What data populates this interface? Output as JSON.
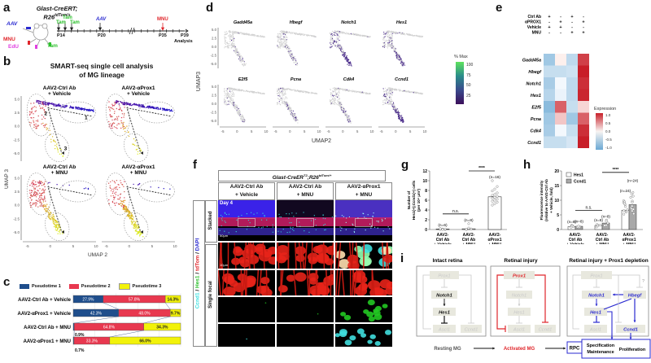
{
  "panels": {
    "a": {
      "label": "a",
      "mouse_title_1": "Glast-CreERT;",
      "mouse_title_2": "R26",
      "mouse_title_sup": "tdTom/+",
      "mouse_injections": [
        {
          "label": "AAV",
          "color": "#2a2ad0"
        },
        {
          "label": "MNU",
          "color": "#e0262b"
        },
        {
          "label": "EdU",
          "color": "#e040e0"
        },
        {
          "label": "Tam",
          "color": "#2ec02e"
        }
      ],
      "timeline": {
        "tam_labels": [
          "Tam",
          "Tam",
          "Tam"
        ],
        "aav_label": "AAV",
        "mnu_label": "MNU",
        "ticks": [
          "P14",
          "P20",
          "P35",
          "P39"
        ],
        "analysis_label": "Analysis",
        "break_symbol": "//"
      }
    },
    "b": {
      "label": "b",
      "title_1": "SMART-seq single cell analysis",
      "title_2": "of MG lineage",
      "subplots": [
        {
          "title_1": "AAV2-Ctrl Ab",
          "title_2": "+ Vehicle"
        },
        {
          "title_1": "AAV2-αProx1",
          "title_2": "+ Vehicle"
        },
        {
          "title_1": "AAV2-Ctrl Ab",
          "title_2": "+ MNU"
        },
        {
          "title_1": "AAV2-αProx1",
          "title_2": "+ MNU"
        }
      ],
      "region_labels": [
        "1",
        "2",
        "3"
      ],
      "y_ticks": [
        "5.0",
        "2.5",
        "0.0",
        "-2.5",
        "-5.0"
      ],
      "x_ticks": [
        "-5",
        "0",
        "5",
        "10"
      ],
      "xlabel": "UMAP 2",
      "ylabel": "UMAP 3"
    },
    "c": {
      "label": "c",
      "legend": [
        {
          "name": "Pseudotime 1",
          "color": "#1f4e8c"
        },
        {
          "name": "Pseudotime 2",
          "color": "#e8384f"
        },
        {
          "name": "Pseudotime 3",
          "color": "#f2f20a"
        }
      ]
    },
    "d": {
      "label": "d",
      "genes_row1": [
        "Gadd45a",
        "Hbegf",
        "Notch1",
        "Hes1"
      ],
      "genes_row2": [
        "E2f5",
        "Pcna",
        "Cdk4",
        "Ccnd1"
      ],
      "y_ticks": [
        "5.0",
        "2.5",
        "0.0",
        "-2.5",
        "-5.0"
      ],
      "x_ticks": [
        "-5",
        "0",
        "5",
        "10"
      ],
      "xlabel": "UMAP2",
      "ylabel": "UMAP3",
      "colorbar_title": "% Max",
      "colorbar_ticks": [
        "100",
        "75",
        "50",
        "25"
      ],
      "expression_intensity": [
        0.15,
        0.2,
        0.85,
        0.55,
        0.08,
        0.18,
        0.25,
        0.75
      ]
    },
    "e": {
      "label": "e",
      "conditions": [
        {
          "name": "Ctrl Ab",
          "signs": [
            "+",
            "-",
            "+",
            "-"
          ]
        },
        {
          "name": "αPROX1",
          "signs": [
            "-",
            "+",
            "-",
            "+"
          ]
        },
        {
          "name": "Vehicle",
          "signs": [
            "+",
            "+",
            "-",
            "-"
          ]
        },
        {
          "name": "MNU",
          "signs": [
            "-",
            "-",
            "+",
            "+"
          ]
        }
      ],
      "genes": [
        "Gadd45a",
        "Hbegf",
        "Notch1",
        "Hes1",
        "E2f5",
        "Pcna",
        "Cdk4",
        "Ccnd1"
      ],
      "colorbar_title": "Expression",
      "colorbar_ticks": [
        "1.0",
        "0.5",
        "0.0",
        "-0.5",
        "-1.0"
      ]
    },
    "f": {
      "label": "f",
      "header": "Glast-CreER",
      "header_sup1": "T2",
      "header_mid": ";R26",
      "header_sup2": "tdTom/+",
      "columns": [
        {
          "line1": "AAV2-Ctrl Ab",
          "line2": "+ Vehicle"
        },
        {
          "line1": "AAV2-Ctrl Ab",
          "line2": "+ MNU"
        },
        {
          "line1": "AAV2-αProx1",
          "line2": "+ MNU"
        }
      ],
      "row_group_labels": [
        "Stacked",
        "Single focal"
      ],
      "stain_labels": [
        {
          "text": "Ccnd1",
          "color": "#39e0e0"
        },
        {
          "text": " / ",
          "color": "#111111"
        },
        {
          "text": "Hes1",
          "color": "#2ec02e"
        },
        {
          "text": " / ",
          "color": "#111111"
        },
        {
          "text": "tdTom",
          "color": "#e0262b"
        },
        {
          "text": " / ",
          "color": "#111111"
        },
        {
          "text": "DAPI",
          "color": "#2a2ad0"
        }
      ],
      "day_label": "Day 4",
      "scale_bar_1": "50μm",
      "scale_bar_2": "10μm"
    },
    "g": {
      "label": "g",
      "significance": [
        "n.s.",
        "****"
      ]
    },
    "h": {
      "label": "h",
      "significance": [
        "n.s.",
        "****"
      ]
    },
    "i": {
      "label": "i",
      "box_titles": [
        "Intact retina",
        "Retinal injury",
        "Retinal injury + Prox1 depletion"
      ],
      "nodes": {
        "prox1": "Prox1",
        "notch1": "Notch1",
        "hes1": "Hes1",
        "ascl1": "Ascl1",
        "ccnd1": "Ccnd1",
        "hbegf": "Hbegf"
      },
      "question": "?",
      "states": [
        "Resting MG",
        "Activated MG"
      ],
      "outcome": {
        "rpc": "RPC",
        "spec_1": "Specification",
        "spec_2": "Maintenance",
        "prolif": "Proliferation"
      }
    }
  },
  "chart_data": [
    {
      "type": "bar",
      "id": "c",
      "title": "",
      "orientation": "horizontal-stacked-100",
      "categories": [
        "AAV2-Ctrl Ab + Vehicle",
        "AAV2-αProx1 + Vehicle",
        "AAV2-Ctrl Ab + MNU",
        "AAV2-αProx1 + MNU"
      ],
      "series": [
        {
          "name": "Pseudotime 1",
          "values": [
            27.9,
            42.3,
            0.9,
            0.7
          ],
          "labels": [
            "27.9%",
            "42.3%",
            "0.9%",
            "0.7%"
          ]
        },
        {
          "name": "Pseudotime 2",
          "values": [
            57.8,
            48.0,
            64.8,
            33.3
          ],
          "labels": [
            "57.8%",
            "48.0%",
            "64.8%",
            "33.3%"
          ]
        },
        {
          "name": "Pseudotime 3",
          "values": [
            14.3,
            9.7,
            34.3,
            66.0
          ],
          "labels": [
            "14.3%",
            "9.7%",
            "34.3%",
            "66.0%"
          ]
        }
      ],
      "xlim": [
        0,
        100
      ]
    },
    {
      "type": "heatmap",
      "id": "e",
      "rows": [
        "Gadd45a",
        "Hbegf",
        "Notch1",
        "Hes1",
        "E2f5",
        "Pcna",
        "Cdk4",
        "Ccnd1"
      ],
      "columns": [
        "Ctrl Ab + Vehicle",
        "αPROX1 + Vehicle",
        "Ctrl Ab + MNU",
        "αPROX1 + MNU"
      ],
      "values": [
        [
          -0.6,
          0.05,
          -0.4,
          1.1
        ],
        [
          -0.35,
          -0.35,
          -0.3,
          1.3
        ],
        [
          -0.55,
          -0.05,
          -0.4,
          1.2
        ],
        [
          -0.45,
          -0.1,
          -0.4,
          1.25
        ],
        [
          -0.75,
          0.9,
          -0.35,
          0.2
        ],
        [
          -0.6,
          0.3,
          -0.6,
          0.9
        ],
        [
          -0.55,
          -0.05,
          -0.35,
          1.2
        ],
        [
          -0.35,
          -0.35,
          -0.25,
          1.3
        ]
      ],
      "zlim": [
        -1.0,
        1.0
      ],
      "legend_title": "Expression"
    },
    {
      "type": "bar",
      "id": "g",
      "ylabel": "Number of Hes1(+);Ccnd1(+) cells (per 10⁴ μm²)",
      "categories": [
        "AAV2-Ctrl Ab + Vehicle",
        "AAV2-Ctrl Ab + MNU",
        "AAV2-αProx1 + MNU"
      ],
      "values": [
        0.1,
        0.15,
        6.7
      ],
      "n_labels": [
        "(n=6)",
        "(n=8)",
        "(n=16)"
      ],
      "yticks": [
        0,
        2,
        4,
        6,
        8,
        10,
        12
      ],
      "ylim": [
        0,
        12
      ],
      "points": [
        [
          0,
          0.1,
          0,
          0.2,
          0,
          0.1
        ],
        [
          0,
          0.2,
          0.1,
          0,
          0.3,
          0.1,
          0,
          1.2
        ],
        [
          5.0,
          5.3,
          5.6,
          5.8,
          6.0,
          6.2,
          6.4,
          6.6,
          6.8,
          7.0,
          7.2,
          7.5,
          7.9,
          8.3,
          8.8,
          10.0
        ]
      ],
      "significance": [
        {
          "between": [
            0,
            1
          ],
          "label": "n.s."
        },
        {
          "between": [
            1,
            2
          ],
          "label": "****"
        }
      ]
    },
    {
      "type": "bar",
      "id": "h",
      "ylabel": "Fluorescence intensity (relative to AAV2-Ctrl Ab + Vehicle, fold)",
      "categories": [
        "AAV2-Ctrl Ab + Vehicle",
        "AAV2-Ctrl Ab + MNU",
        "AAV2-αProx1 + MNU"
      ],
      "series": [
        {
          "name": "Hes1",
          "color": "#ffffff",
          "values": [
            1.0,
            1.4,
            6.6
          ],
          "n_labels": [
            "(n=8)",
            "(n=8)",
            "(n=24)"
          ]
        },
        {
          "name": "Ccnd1",
          "color": "#a8a8a8",
          "values": [
            1.1,
            2.2,
            8.5
          ],
          "n_labels": [
            "(n=8)",
            "(n=8)",
            "(n=24)"
          ]
        }
      ],
      "yticks": [
        0,
        5,
        10,
        15,
        20
      ],
      "ylim": [
        0,
        20
      ],
      "significance": [
        {
          "between": [
            0,
            1
          ],
          "label": "n.s."
        },
        {
          "between": [
            1,
            2
          ],
          "label": "****"
        }
      ]
    }
  ]
}
